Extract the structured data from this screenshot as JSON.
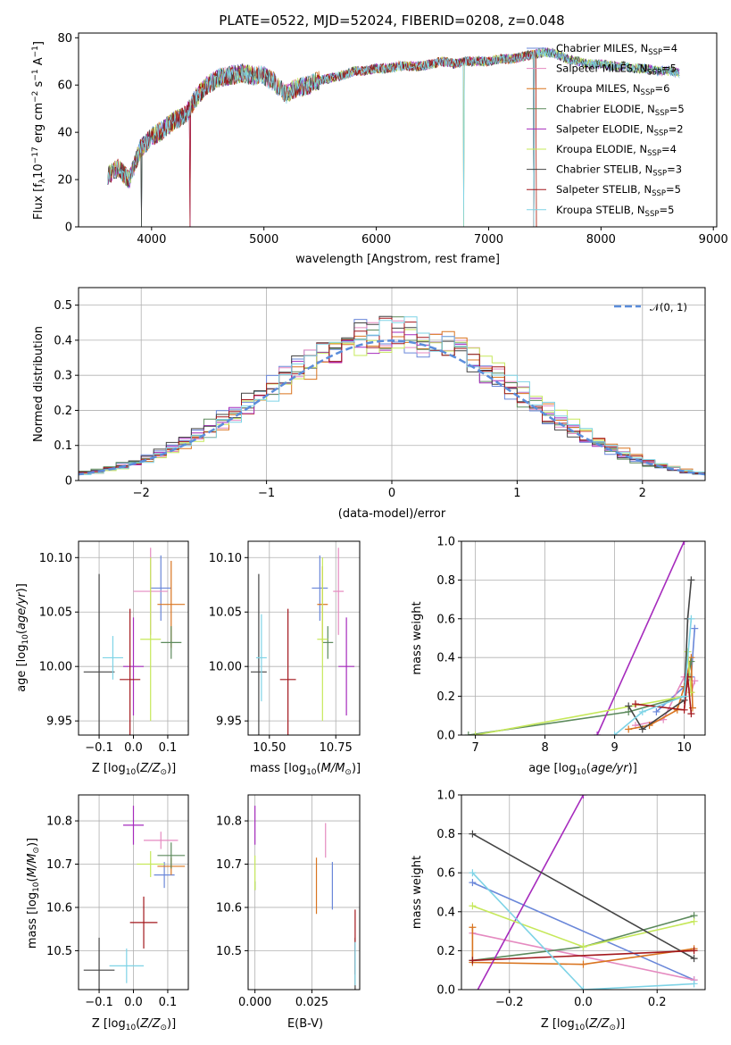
{
  "figure": {
    "title": "PLATE=0522, MJD=52024, FIBERID=0208, z=0.048"
  },
  "series": [
    {
      "name": "Chabrier MILES",
      "nssp": "4",
      "color": "#6a87d9"
    },
    {
      "name": "Salpeter MILES",
      "nssp": "5",
      "color": "#e58ac0"
    },
    {
      "name": "Kroupa MILES",
      "nssp": "6",
      "color": "#d9741f"
    },
    {
      "name": "Chabrier ELODIE",
      "nssp": "5",
      "color": "#5c8a5c"
    },
    {
      "name": "Salpeter ELODIE",
      "nssp": "2",
      "color": "#a62bbd"
    },
    {
      "name": "Kroupa ELODIE",
      "nssp": "4",
      "color": "#c6e85a"
    },
    {
      "name": "Chabrier STELIB",
      "nssp": "3",
      "color": "#444444"
    },
    {
      "name": "Salpeter STELIB",
      "nssp": "5",
      "color": "#a3171c"
    },
    {
      "name": "Kroupa STELIB",
      "nssp": "5",
      "color": "#7ed3e6"
    }
  ],
  "chart_data": [
    {
      "id": "spectrum",
      "type": "line",
      "title": "PLATE=0522, MJD=52024, FIBERID=0208, z=0.048",
      "xlabel": "wavelength [Angstrom, rest frame]",
      "ylabel": "Flux [f_λ 10^-17 erg cm^-2 s^-1 A^-1]",
      "xlim": [
        3350,
        9030
      ],
      "ylim": [
        0,
        82
      ],
      "xticks": [
        4000,
        5000,
        6000,
        7000,
        8000,
        9000
      ],
      "yticks": [
        0,
        20,
        40,
        60,
        80
      ],
      "grid": false,
      "legend": "upper right",
      "spectrum_nodes": [
        [
          3610,
          22
        ],
        [
          3700,
          25
        ],
        [
          3800,
          20
        ],
        [
          3900,
          33
        ],
        [
          4000,
          38
        ],
        [
          4100,
          41
        ],
        [
          4200,
          45
        ],
        [
          4300,
          47
        ],
        [
          4400,
          55
        ],
        [
          4500,
          60
        ],
        [
          4600,
          63
        ],
        [
          4700,
          64
        ],
        [
          4800,
          65
        ],
        [
          4900,
          64
        ],
        [
          5000,
          64
        ],
        [
          5100,
          61
        ],
        [
          5200,
          56
        ],
        [
          5300,
          59
        ],
        [
          5400,
          60
        ],
        [
          5500,
          62
        ],
        [
          5600,
          63
        ],
        [
          5700,
          64
        ],
        [
          5800,
          66
        ],
        [
          5900,
          66
        ],
        [
          6000,
          67
        ],
        [
          6100,
          67
        ],
        [
          6200,
          68
        ],
        [
          6300,
          68
        ],
        [
          6400,
          68
        ],
        [
          6500,
          69
        ],
        [
          6600,
          70
        ],
        [
          6700,
          69
        ],
        [
          6800,
          70
        ],
        [
          6900,
          70
        ],
        [
          7000,
          70
        ],
        [
          7100,
          71
        ],
        [
          7200,
          71
        ],
        [
          7300,
          72
        ],
        [
          7400,
          73
        ],
        [
          7500,
          74
        ],
        [
          7600,
          73
        ],
        [
          7700,
          71
        ],
        [
          7800,
          70
        ],
        [
          7900,
          69
        ],
        [
          8000,
          69
        ],
        [
          8100,
          68
        ],
        [
          8200,
          68
        ],
        [
          8300,
          67
        ],
        [
          8400,
          67
        ],
        [
          8500,
          66
        ],
        [
          8600,
          66
        ],
        [
          8700,
          65
        ]
      ],
      "series_ranges": [
        [
          3610,
          8700
        ],
        [
          3610,
          8700
        ],
        [
          3610,
          7420
        ],
        [
          3610,
          8700
        ],
        [
          3610,
          8700
        ],
        [
          3610,
          8700
        ],
        [
          3610,
          8700
        ],
        [
          3610,
          7420
        ],
        [
          3610,
          8700
        ]
      ],
      "dips": [
        [
          3910,
          0
        ],
        [
          4340,
          0
        ],
        [
          6780,
          0
        ],
        [
          7400,
          0
        ]
      ]
    },
    {
      "id": "residuals",
      "type": "step",
      "xlabel": "(data-model)/error",
      "ylabel": "Normed distribution",
      "xlim": [
        -2.5,
        2.5
      ],
      "ylim": [
        0,
        0.55
      ],
      "xticks": [
        -2,
        -1,
        0,
        1,
        2
      ],
      "yticks": [
        0.0,
        0.1,
        0.2,
        0.3,
        0.4,
        0.5
      ],
      "grid": true,
      "bin_width": 0.1,
      "reference": {
        "label": "𝒩(0, 1)",
        "style": "dashed",
        "color": "#5b8ddb"
      },
      "legend": "upper right"
    },
    {
      "id": "age_vs_Z",
      "type": "errorbar",
      "xlabel": "Z [log10(Z/Z⊙)]",
      "ylabel": "age [log10(age/yr)]",
      "xlim": [
        -0.16,
        0.16
      ],
      "ylim": [
        9.937,
        10.115
      ],
      "xticks": [
        -0.1,
        0.0,
        0.1
      ],
      "yticks": [
        9.95,
        10.0,
        10.05,
        10.1
      ],
      "grid": true,
      "points": [
        {
          "series": 0,
          "x": 0.08,
          "xerr": 0.03,
          "y": 10.072,
          "yerr": 0.03
        },
        {
          "series": 1,
          "x": 0.05,
          "xerr": 0.05,
          "y": 10.069,
          "yerr": 0.04
        },
        {
          "series": 2,
          "x": 0.11,
          "xerr": 0.04,
          "y": 10.057,
          "yerr": 0.04
        },
        {
          "series": 3,
          "x": 0.11,
          "xerr": 0.03,
          "y": 10.022,
          "yerr": 0.015
        },
        {
          "series": 4,
          "x": 0.0,
          "xerr": 0.03,
          "y": 10.0,
          "yerr": 0.045
        },
        {
          "series": 5,
          "x": 0.05,
          "xerr": 0.03,
          "y": 10.025,
          "yerr": 0.075
        },
        {
          "series": 6,
          "x": -0.1,
          "xerr": 0.045,
          "y": 9.995,
          "yerr": 0.09
        },
        {
          "series": 7,
          "x": -0.01,
          "xerr": 0.03,
          "y": 9.988,
          "yerr": 0.065
        },
        {
          "series": 8,
          "x": -0.06,
          "xerr": 0.03,
          "y": 10.008,
          "yerr": 0.02
        }
      ]
    },
    {
      "id": "age_vs_mass",
      "type": "errorbar",
      "xlabel": "mass [log10(M/M⊙)]",
      "ylabel": "",
      "xlim": [
        10.42,
        10.84
      ],
      "ylim": [
        9.937,
        10.115
      ],
      "xticks": [
        10.5,
        10.75
      ],
      "yticks": [
        9.95,
        10.0,
        10.05,
        10.1
      ],
      "grid": true,
      "points": [
        {
          "series": 0,
          "x": 10.69,
          "xerr": 0.03,
          "y": 10.072,
          "yerr": 0.03
        },
        {
          "series": 1,
          "x": 10.76,
          "xerr": 0.02,
          "y": 10.069,
          "yerr": 0.04
        },
        {
          "series": 2,
          "x": 10.7,
          "xerr": 0.02,
          "y": 10.057,
          "yerr": 0.035
        },
        {
          "series": 3,
          "x": 10.72,
          "xerr": 0.02,
          "y": 10.022,
          "yerr": 0.015
        },
        {
          "series": 4,
          "x": 10.79,
          "xerr": 0.03,
          "y": 10.0,
          "yerr": 0.045
        },
        {
          "series": 5,
          "x": 10.7,
          "xerr": 0.02,
          "y": 10.025,
          "yerr": 0.075
        },
        {
          "series": 6,
          "x": 10.46,
          "xerr": 0.03,
          "y": 9.995,
          "yerr": 0.09
        },
        {
          "series": 7,
          "x": 10.57,
          "xerr": 0.03,
          "y": 9.988,
          "yerr": 0.065
        },
        {
          "series": 8,
          "x": 10.47,
          "xerr": 0.02,
          "y": 10.008,
          "yerr": 0.04
        }
      ]
    },
    {
      "id": "weights_vs_age",
      "type": "line",
      "xlabel": "age [log10(age/yr)]",
      "ylabel": "mass weight",
      "xlim": [
        6.8,
        10.3
      ],
      "ylim": [
        0,
        1.0
      ],
      "xticks": [
        7,
        8,
        9,
        10
      ],
      "yticks": [
        0.0,
        0.2,
        0.4,
        0.6,
        0.8,
        1.0
      ],
      "grid": true,
      "lines": [
        {
          "series": 0,
          "x": [
            9.6,
            10.0,
            10.1,
            10.15
          ],
          "y": [
            0.12,
            0.25,
            0.3,
            0.55
          ]
        },
        {
          "series": 1,
          "x": [
            9.3,
            9.7,
            10.0,
            10.1,
            10.15
          ],
          "y": [
            0.05,
            0.08,
            0.3,
            0.22,
            0.28
          ]
        },
        {
          "series": 2,
          "x": [
            9.2,
            9.5,
            9.9,
            10.0,
            10.1,
            10.12
          ],
          "y": [
            0.03,
            0.05,
            0.13,
            0.25,
            0.4,
            0.14
          ]
        },
        {
          "series": 3,
          "x": [
            6.9,
            9.2,
            10.0,
            10.1
          ],
          "y": [
            0.0,
            0.12,
            0.2,
            0.38
          ]
        },
        {
          "series": 4,
          "x": [
            8.75,
            10.0
          ],
          "y": [
            0.0,
            1.0
          ]
        },
        {
          "series": 5,
          "x": [
            7.0,
            10.0,
            10.05,
            10.1
          ],
          "y": [
            0.0,
            0.2,
            0.43,
            0.22
          ]
        },
        {
          "series": 6,
          "x": [
            9.2,
            9.4,
            10.0,
            10.05,
            10.1
          ],
          "y": [
            0.15,
            0.03,
            0.18,
            0.6,
            0.8
          ]
        },
        {
          "series": 7,
          "x": [
            9.3,
            10.0,
            10.05,
            10.1
          ],
          "y": [
            0.16,
            0.13,
            0.3,
            0.11
          ]
        },
        {
          "series": 8,
          "x": [
            9.0,
            9.4,
            10.0,
            10.1
          ],
          "y": [
            0.0,
            0.12,
            0.2,
            0.6
          ]
        }
      ]
    },
    {
      "id": "mass_vs_Z",
      "type": "errorbar",
      "xlabel": "Z [log10(Z/Z⊙)]",
      "ylabel": "mass [log10(M/M⊙)]",
      "xlim": [
        -0.16,
        0.16
      ],
      "ylim": [
        10.41,
        10.86
      ],
      "xticks": [
        -0.1,
        0.0,
        0.1
      ],
      "yticks": [
        10.5,
        10.6,
        10.7,
        10.8
      ],
      "grid": true,
      "points": [
        {
          "series": 0,
          "x": 0.09,
          "xerr": 0.03,
          "y": 10.675,
          "yerr": 0.03
        },
        {
          "series": 1,
          "x": 0.08,
          "xerr": 0.05,
          "y": 10.755,
          "yerr": 0.02
        },
        {
          "series": 2,
          "x": 0.11,
          "xerr": 0.04,
          "y": 10.695,
          "yerr": 0.02
        },
        {
          "series": 3,
          "x": 0.11,
          "xerr": 0.04,
          "y": 10.72,
          "yerr": 0.03
        },
        {
          "series": 4,
          "x": 0.0,
          "xerr": 0.03,
          "y": 10.79,
          "yerr": 0.045
        },
        {
          "series": 5,
          "x": 0.05,
          "xerr": 0.04,
          "y": 10.7,
          "yerr": 0.03
        },
        {
          "series": 6,
          "x": -0.1,
          "xerr": 0.045,
          "y": 10.455,
          "yerr": 0.075
        },
        {
          "series": 7,
          "x": 0.03,
          "xerr": 0.04,
          "y": 10.565,
          "yerr": 0.06
        },
        {
          "series": 8,
          "x": -0.02,
          "xerr": 0.05,
          "y": 10.465,
          "yerr": 0.04
        }
      ]
    },
    {
      "id": "mass_vs_ebv",
      "type": "errorbar",
      "xlabel": "E(B-V)",
      "ylabel": "",
      "xlim": [
        -0.003,
        0.046
      ],
      "ylim": [
        10.41,
        10.86
      ],
      "xticks": [
        0.0,
        0.025
      ],
      "yticks": [
        10.5,
        10.6,
        10.7,
        10.8
      ],
      "grid": true,
      "points": [
        {
          "series": 0,
          "x": 0.034,
          "xerr": 0.0,
          "y": 10.65,
          "yerr": 0.055
        },
        {
          "series": 1,
          "x": 0.031,
          "xerr": 0.0,
          "y": 10.755,
          "yerr": 0.04
        },
        {
          "series": 2,
          "x": 0.027,
          "xerr": 0.0,
          "y": 10.65,
          "yerr": 0.065
        },
        {
          "series": 3,
          "x": 0.0,
          "xerr": 0.0,
          "y": 10.65,
          "yerr": 0.01
        },
        {
          "series": 4,
          "x": 0.0,
          "xerr": 0.0,
          "y": 10.79,
          "yerr": 0.045
        },
        {
          "series": 5,
          "x": 0.0,
          "xerr": 0.0,
          "y": 10.68,
          "yerr": 0.04
        },
        {
          "series": 6,
          "x": 0.044,
          "xerr": 0.0,
          "y": 10.45,
          "yerr": 0.08
        },
        {
          "series": 7,
          "x": 0.044,
          "xerr": 0.0,
          "y": 10.52,
          "yerr": 0.075
        },
        {
          "series": 8,
          "x": 0.044,
          "xerr": 0.0,
          "y": 10.47,
          "yerr": 0.05
        }
      ]
    },
    {
      "id": "weights_vs_Z",
      "type": "line",
      "xlabel": "Z [log10(Z/Z⊙)]",
      "ylabel": "mass weight",
      "xlim": [
        -0.33,
        0.33
      ],
      "ylim": [
        0,
        1.0
      ],
      "xticks": [
        -0.2,
        0.0,
        0.2
      ],
      "yticks": [
        0.0,
        0.2,
        0.4,
        0.6,
        0.8,
        1.0
      ],
      "grid": true,
      "lines": [
        {
          "series": 0,
          "x": [
            -0.3,
            0.3
          ],
          "y": [
            0.55,
            0.05
          ]
        },
        {
          "series": 1,
          "x": [
            -0.3,
            0.3
          ],
          "y": [
            0.29,
            0.05
          ]
        },
        {
          "series": 2,
          "x": [
            -0.3,
            -0.3,
            0.0,
            0.3
          ],
          "y": [
            0.32,
            0.14,
            0.13,
            0.21
          ]
        },
        {
          "series": 3,
          "x": [
            -0.3,
            0.0,
            0.3
          ],
          "y": [
            0.15,
            0.22,
            0.38
          ]
        },
        {
          "series": 4,
          "x": [
            -0.3,
            0.0
          ],
          "y": [
            -0.05,
            1.0
          ]
        },
        {
          "series": 5,
          "x": [
            -0.3,
            0.0,
            0.3
          ],
          "y": [
            0.43,
            0.22,
            0.35
          ]
        },
        {
          "series": 6,
          "x": [
            -0.3,
            0.3
          ],
          "y": [
            0.8,
            0.16
          ]
        },
        {
          "series": 7,
          "x": [
            -0.3,
            0.3
          ],
          "y": [
            0.15,
            0.2
          ]
        },
        {
          "series": 8,
          "x": [
            -0.3,
            0.0,
            0.3
          ],
          "y": [
            0.6,
            0.0,
            0.03
          ]
        }
      ]
    }
  ]
}
